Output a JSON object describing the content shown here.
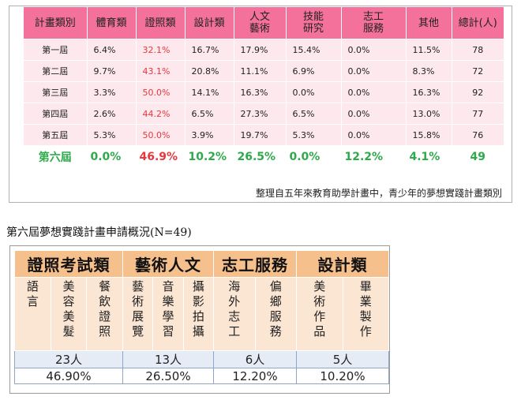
{
  "top_table": {
    "headers": [
      "計畫類別",
      "體育類",
      "證照類",
      "設計類",
      "人文\n藝術",
      "技能\n研究",
      "志工\n服務",
      "其他",
      "總計(人)"
    ],
    "rows": [
      {
        "label": "第一屆",
        "values": [
          "6.4%",
          "32.1%",
          "16.7%",
          "17.9%",
          "15.4%",
          "0.0%",
          "11.5%",
          "78"
        ]
      },
      {
        "label": "第二屆",
        "values": [
          "9.7%",
          "43.1%",
          "20.8%",
          "11.1%",
          "6.9%",
          "0.0%",
          "8.3%",
          "72"
        ]
      },
      {
        "label": "第三屆",
        "values": [
          "3.3%",
          "50.0%",
          "14.1%",
          "16.3%",
          "0.0%",
          "0.0%",
          "16.3%",
          "92"
        ]
      },
      {
        "label": "第四屆",
        "values": [
          "2.6%",
          "44.2%",
          "6.5%",
          "27.3%",
          "6.5%",
          "0.0%",
          "13.0%",
          "77"
        ]
      },
      {
        "label": "第五屆",
        "values": [
          "5.3%",
          "50.0%",
          "3.9%",
          "19.7%",
          "5.3%",
          "0.0%",
          "15.8%",
          "76"
        ]
      },
      {
        "label": "第六屆",
        "values": [
          "0.0%",
          "46.9%",
          "10.2%",
          "26.5%",
          "0.0%",
          "12.2%",
          "4.1%",
          "49"
        ]
      }
    ],
    "note": "整理自五年來教育助學計畫中，青少年的夢想實踐計畫類別"
  },
  "heading": "第六屆夢想實踐計畫申請概況(N=49)",
  "bottom_table": {
    "groups": [
      {
        "title": "證照考試類",
        "items": [
          "語言",
          "美容美髮",
          "餐飲證照"
        ],
        "count": "23人",
        "share": "46.90%"
      },
      {
        "title": "藝術人文",
        "items": [
          "藝術展覽",
          "音樂學習",
          "攝影拍攝"
        ],
        "count": "13人",
        "share": "26.50%"
      },
      {
        "title": "志工服務",
        "items": [
          "海外志工",
          "偏鄉服務"
        ],
        "count": "6人",
        "share": "12.20%"
      },
      {
        "title": "設計類",
        "items": [
          "美術作品",
          "畢業製作"
        ],
        "count": "5人",
        "share": "10.20%"
      }
    ]
  },
  "colors": {
    "header_pink": "#f3719b",
    "row_pink": "#fde8ee",
    "red_text": "#e8373b",
    "green_text": "#2eaa4a",
    "header_orange": "#f6c08d",
    "item_peach": "#fbe5d3",
    "count_blue": "#e6ecf6"
  }
}
